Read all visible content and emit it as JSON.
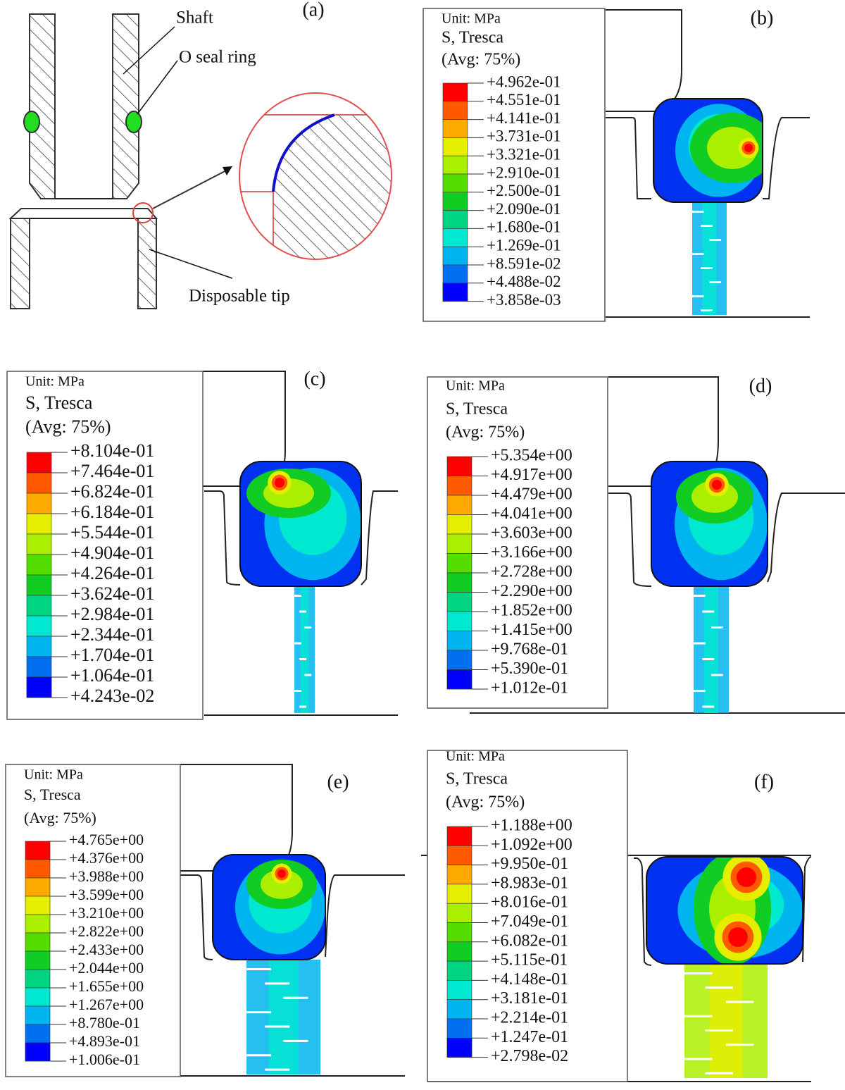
{
  "panel_a": {
    "label": "(a)",
    "shaft": "Shaft",
    "ring": "O seal ring",
    "tip": "Disposable tip"
  },
  "legend_colors": [
    "#ff0000",
    "#ff5a00",
    "#ffaa00",
    "#e6ee00",
    "#aaee00",
    "#55dd00",
    "#11cc22",
    "#00d480",
    "#00e8d0",
    "#00b4f0",
    "#0070f0",
    "#0030f0",
    "#0000ff"
  ],
  "panels": [
    {
      "label": "(b)",
      "unit": "Unit: MPa",
      "variable": "S, Tresca",
      "averaging": "(Avg: 75%)",
      "levels": [
        "+4.962e-01",
        "+4.551e-01",
        "+4.141e-01",
        "+3.731e-01",
        "+3.321e-01",
        "+2.910e-01",
        "+2.500e-01",
        "+2.090e-01",
        "+1.680e-01",
        "+1.269e-01",
        "+8.591e-02",
        "+4.488e-02",
        "+3.858e-03"
      ]
    },
    {
      "label": "(c)",
      "unit": "Unit: MPa",
      "variable": "S, Tresca",
      "averaging": "(Avg: 75%)",
      "levels": [
        "+8.104e-01",
        "+7.464e-01",
        "+6.824e-01",
        "+6.184e-01",
        "+5.544e-01",
        "+4.904e-01",
        "+4.264e-01",
        "+3.624e-01",
        "+2.984e-01",
        "+2.344e-01",
        "+1.704e-01",
        "+1.064e-01",
        "+4.243e-02"
      ]
    },
    {
      "label": "(d)",
      "unit": "Unit: MPa",
      "variable": "S, Tresca",
      "averaging": "(Avg: 75%)",
      "levels": [
        "+5.354e+00",
        "+4.917e+00",
        "+4.479e+00",
        "+4.041e+00",
        "+3.603e+00",
        "+3.166e+00",
        "+2.728e+00",
        "+2.290e+00",
        "+1.852e+00",
        "+1.415e+00",
        "+9.768e-01",
        "+5.390e-01",
        "+1.012e-01"
      ]
    },
    {
      "label": "(e)",
      "unit": "Unit: MPa",
      "variable": "S, Tresca",
      "averaging": "(Avg: 75%)",
      "levels": [
        "+4.765e+00",
        "+4.376e+00",
        "+3.988e+00",
        "+3.599e+00",
        "+3.210e+00",
        "+2.822e+00",
        "+2.433e+00",
        "+2.044e+00",
        "+1.655e+00",
        "+1.267e+00",
        "+8.780e-01",
        "+4.893e-01",
        "+1.006e-01"
      ]
    },
    {
      "label": "(f)",
      "unit": "Unit: MPa",
      "variable": "S, Tresca",
      "averaging": "(Avg: 75%)",
      "levels": [
        "+1.188e+00",
        "+1.092e+00",
        "+9.950e-01",
        "+8.983e-01",
        "+8.016e-01",
        "+7.049e-01",
        "+6.082e-01",
        "+5.115e-01",
        "+4.148e-01",
        "+3.181e-01",
        "+2.214e-01",
        "+1.247e-01",
        "+2.798e-02"
      ]
    }
  ]
}
